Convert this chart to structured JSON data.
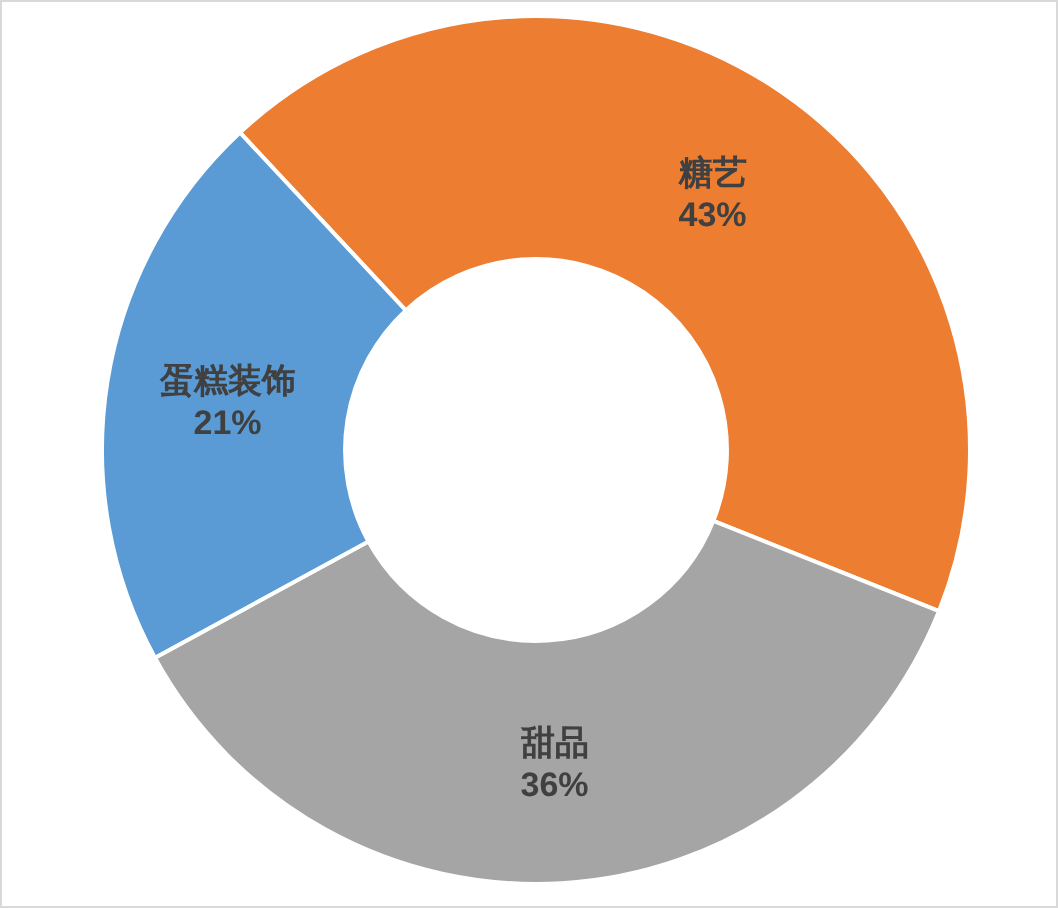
{
  "chart_data": {
    "type": "donut",
    "categories": [
      "糖艺",
      "甜品",
      "蛋糕装饰"
    ],
    "values": [
      43,
      36,
      21
    ],
    "colors": [
      "#ed7d31",
      "#a5a5a5",
      "#5b9bd5"
    ],
    "value_labels": [
      "43%",
      "36%",
      "21%"
    ],
    "legend": false
  }
}
